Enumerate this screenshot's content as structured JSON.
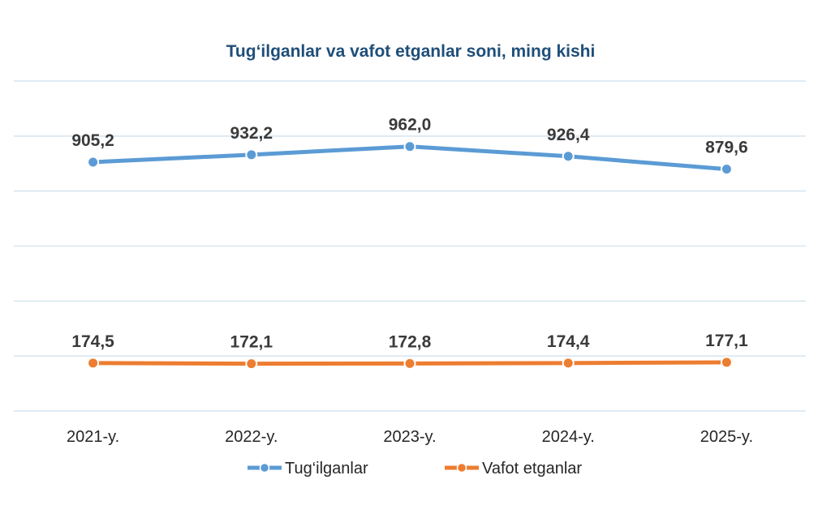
{
  "chart_data": {
    "type": "line",
    "title": "Tug‘ilganlar va vafot etganlar soni, ming kishi",
    "categories": [
      "2021-y.",
      "2022-y.",
      "2023-y.",
      "2024-y.",
      "2025-y."
    ],
    "series": [
      {
        "name": "Tug‘ilganlar",
        "color": "#5b9bd5",
        "values": [
          905.2,
          932.2,
          962.0,
          926.4,
          879.6
        ],
        "labels": [
          "905,2",
          "932,2",
          "962,0",
          "926,4",
          "879,6"
        ]
      },
      {
        "name": "Vafot etganlar",
        "color": "#ed7d31",
        "values": [
          174.5,
          172.1,
          172.8,
          174.4,
          177.1
        ],
        "labels": [
          "174,5",
          "172,1",
          "172,8",
          "174,4",
          "177,1"
        ]
      }
    ],
    "ylim": [
      0,
      1200
    ],
    "grid": true,
    "legend_position": "bottom"
  }
}
